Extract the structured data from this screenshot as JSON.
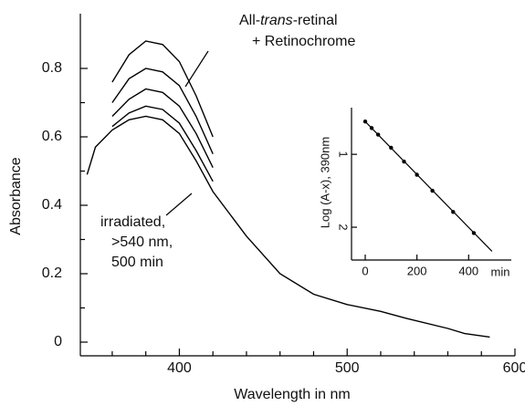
{
  "chart_data": [
    {
      "type": "line",
      "x_label": "Wavelength in nm",
      "y_label": "Absorbance",
      "x": [
        345,
        350,
        360,
        370,
        380,
        390,
        400,
        410,
        420,
        440,
        460,
        480,
        500,
        520,
        535,
        560,
        570,
        585
      ],
      "series": [
        {
          "color": "#000000",
          "values": [
            0.49,
            0.57,
            0.62,
            0.65,
            0.66,
            0.65,
            0.61,
            0.53,
            0.44,
            0.31,
            0.2,
            0.14,
            0.11,
            0.09,
            0.07,
            0.04,
            0.025,
            0.015
          ]
        },
        {
          "color": "#000000",
          "values": [
            null,
            null,
            0.63,
            0.67,
            0.69,
            0.68,
            0.64,
            0.56,
            0.47,
            null,
            null,
            null,
            null,
            null,
            null,
            null,
            null,
            null
          ]
        },
        {
          "color": "#000000",
          "values": [
            null,
            null,
            0.66,
            0.71,
            0.74,
            0.73,
            0.69,
            0.61,
            0.51,
            null,
            null,
            null,
            null,
            null,
            null,
            null,
            null,
            null
          ]
        },
        {
          "color": "#000000",
          "values": [
            null,
            null,
            0.7,
            0.77,
            0.8,
            0.79,
            0.75,
            0.66,
            0.55,
            null,
            null,
            null,
            null,
            null,
            null,
            null,
            null,
            null
          ]
        },
        {
          "color": "#000000",
          "values": [
            null,
            null,
            0.76,
            0.84,
            0.88,
            0.87,
            0.82,
            0.72,
            0.6,
            null,
            null,
            null,
            null,
            null,
            null,
            null,
            null,
            null
          ]
        }
      ],
      "xlim": [
        341,
        600
      ],
      "xticks": [
        400,
        500,
        600
      ],
      "xminorticks": [
        360,
        380,
        420,
        440,
        460,
        480,
        520,
        540,
        560,
        580
      ],
      "ylim": [
        -0.04,
        0.96
      ],
      "yticks": [
        0,
        0.2,
        0.4,
        0.6,
        0.8
      ],
      "yminorticks": [
        0.1,
        0.3,
        0.5,
        0.7
      ],
      "annotations": {
        "top": {
          "line1": [
            "All-",
            "trans",
            "-retinal"
          ],
          "line2": "+ Retinochrome"
        },
        "bottom": [
          "irradiated,",
          ">540 nm,",
          "500 min"
        ]
      }
    },
    {
      "type": "scatter",
      "x_label": "min",
      "y_label": "Log (A-x), 390nm",
      "x": [
        0,
        25,
        50,
        100,
        150,
        200,
        260,
        340,
        420
      ],
      "values": [
        0.55,
        0.64,
        0.73,
        0.91,
        1.1,
        1.28,
        1.5,
        1.79,
        2.08
      ],
      "color": "#000000",
      "fit": {
        "x": [
          0,
          490
        ],
        "values": [
          0.55,
          2.33
        ]
      },
      "xlim": [
        -53,
        565
      ],
      "xticks": [
        0,
        200,
        400
      ],
      "ylim": [
        0.36,
        2.45
      ],
      "y_inverted": true,
      "yticks": [
        1,
        2
      ]
    }
  ]
}
